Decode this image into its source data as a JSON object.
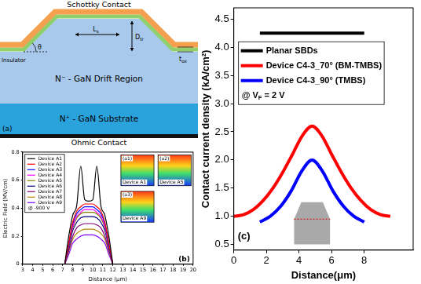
{
  "schematic": {
    "panel": "(a)",
    "schottky": "Schottky Contact",
    "ls": {
      "base": "L",
      "sub": "s"
    },
    "dtr": {
      "base": "D",
      "sub": "tr"
    },
    "theta": "θ",
    "insulator": "Insulator",
    "tox": {
      "base": "t",
      "sub": "ox"
    },
    "drift": "N⁻ - GaN Drift Region",
    "substrate": "N⁺ - GaN Substrate",
    "ohmic": "Ohmic Contact"
  },
  "chart_data": [
    {
      "panel": "(b)",
      "type": "line",
      "x_label": "Distance (μm)",
      "y_label": "Electric Field (MV/cm)",
      "xlim": [
        3,
        20
      ],
      "xticks": [
        3,
        4,
        5,
        6,
        7,
        8,
        9,
        10,
        11,
        12,
        13,
        14,
        15,
        16,
        17,
        18,
        19,
        20
      ],
      "ylim": [
        0,
        0.8
      ],
      "yticks": [
        0,
        0.2,
        0.4,
        0.6,
        0.8
      ],
      "legend": "upper left",
      "annotation": "@ -900 V",
      "insets": [
        {
          "tag": "(a1)",
          "label": "Device A1"
        },
        {
          "tag": "(a2)",
          "label": "Device A5"
        },
        {
          "tag": "(a3)",
          "label": "Device A9"
        }
      ],
      "series": [
        {
          "name": "Device A1",
          "color": "#000000",
          "x": [
            7.2,
            7.6,
            8.0,
            8.4,
            8.8,
            9.2,
            9.6,
            10.0,
            10.4,
            10.8,
            11.2,
            11.6,
            12.0
          ],
          "values": [
            0,
            0.2,
            0.35,
            0.42,
            0.7,
            0.46,
            0.45,
            0.46,
            0.7,
            0.42,
            0.35,
            0.2,
            0
          ]
        },
        {
          "name": "Device A2",
          "color": "#ff0000",
          "x": [
            7.2,
            7.6,
            8.0,
            8.4,
            8.8,
            9.2,
            9.6,
            10.0,
            10.4,
            10.8,
            11.2,
            11.6,
            12.0
          ],
          "values": [
            0,
            0.15,
            0.3,
            0.38,
            0.41,
            0.43,
            0.43,
            0.43,
            0.41,
            0.38,
            0.3,
            0.15,
            0
          ]
        },
        {
          "name": "Device A3",
          "color": "#0000ff",
          "x": [
            7.2,
            7.6,
            8.0,
            8.4,
            8.8,
            9.2,
            9.6,
            10.0,
            10.4,
            10.8,
            11.2,
            11.6,
            12.0
          ],
          "values": [
            0,
            0.14,
            0.29,
            0.36,
            0.39,
            0.41,
            0.41,
            0.41,
            0.39,
            0.36,
            0.29,
            0.14,
            0
          ]
        },
        {
          "name": "Device A4",
          "color": "#ff00ff",
          "x": [
            7.2,
            7.6,
            8.0,
            8.4,
            8.8,
            9.2,
            9.6,
            10.0,
            10.4,
            10.8,
            11.2,
            11.6,
            12.0
          ],
          "values": [
            0,
            0.14,
            0.27,
            0.34,
            0.37,
            0.39,
            0.39,
            0.39,
            0.37,
            0.34,
            0.27,
            0.14,
            0
          ]
        },
        {
          "name": "Device A5",
          "color": "#808000",
          "x": [
            7.2,
            7.6,
            8.0,
            8.4,
            8.8,
            9.2,
            9.6,
            10.0,
            10.4,
            10.8,
            11.2,
            11.6,
            12.0
          ],
          "values": [
            0,
            0.13,
            0.26,
            0.33,
            0.36,
            0.37,
            0.37,
            0.37,
            0.36,
            0.33,
            0.26,
            0.13,
            0
          ]
        },
        {
          "name": "Device A6",
          "color": "#000080",
          "x": [
            7.2,
            7.6,
            8.0,
            8.4,
            8.8,
            9.2,
            9.6,
            10.0,
            10.4,
            10.8,
            11.2,
            11.6,
            12.0
          ],
          "values": [
            0,
            0.12,
            0.24,
            0.3,
            0.33,
            0.34,
            0.34,
            0.34,
            0.33,
            0.3,
            0.24,
            0.12,
            0
          ]
        },
        {
          "name": "Device A7",
          "color": "#800080",
          "x": [
            7.2,
            7.6,
            8.0,
            8.4,
            8.8,
            9.2,
            9.6,
            10.0,
            10.4,
            10.8,
            11.2,
            11.6,
            12.0
          ],
          "values": [
            0,
            0.1,
            0.2,
            0.26,
            0.28,
            0.29,
            0.29,
            0.29,
            0.28,
            0.26,
            0.2,
            0.1,
            0
          ]
        },
        {
          "name": "Device A8",
          "color": "#b8860b",
          "x": [
            7.2,
            7.6,
            8.0,
            8.4,
            8.8,
            9.2,
            9.6,
            10.0,
            10.4,
            10.8,
            11.2,
            11.6,
            12.0
          ],
          "values": [
            0,
            0.09,
            0.18,
            0.22,
            0.24,
            0.25,
            0.25,
            0.25,
            0.24,
            0.22,
            0.18,
            0.09,
            0
          ]
        },
        {
          "name": "Device A9",
          "color": "#8000ff",
          "x": [
            7.2,
            7.6,
            8.0,
            8.4,
            8.8,
            9.2,
            9.6,
            10.0,
            10.4,
            10.8,
            11.2,
            11.6,
            12.0
          ],
          "values": [
            0,
            0.07,
            0.15,
            0.18,
            0.2,
            0.21,
            0.21,
            0.21,
            0.2,
            0.18,
            0.15,
            0.07,
            0
          ]
        }
      ]
    },
    {
      "panel": "(c)",
      "type": "line",
      "x_label": "Distance(μm)",
      "y_label": "Contact current density (kA/cm²)",
      "xlim": [
        0,
        11
      ],
      "xticks": [
        0,
        2,
        4,
        6,
        8
      ],
      "ylim": [
        0.4,
        4.7
      ],
      "yticks": [
        0.5,
        {
          "value": 1,
          "label": "1.0"
        },
        1.5,
        {
          "value": 2,
          "label": "2.0"
        },
        2.5,
        {
          "value": 3,
          "label": "3.0"
        },
        3.5,
        {
          "value": 4,
          "label": "4.0"
        },
        4.5
      ],
      "legend": "upper left",
      "annotation": {
        "parts": [
          "@ V",
          "F",
          " = 2 V"
        ],
        "sub": [
          false,
          true,
          false
        ]
      },
      "series": [
        {
          "name": "Planar SBDs",
          "color": "#000000",
          "x": [
            1.6,
            8.0
          ],
          "values": [
            4.25,
            4.25
          ]
        },
        {
          "name": "Device C4-3_70° (BM-TMBS)",
          "color": "#ff0000",
          "x": [
            0,
            0.6,
            1.2,
            1.8,
            2.4,
            3.0,
            3.6,
            4.2,
            4.8,
            5.4,
            6.0,
            6.6,
            7.2,
            7.8,
            8.4,
            9.0,
            9.6
          ],
          "values": [
            1.0,
            1.03,
            1.12,
            1.28,
            1.5,
            1.78,
            2.1,
            2.43,
            2.6,
            2.43,
            2.1,
            1.78,
            1.5,
            1.28,
            1.12,
            1.03,
            1.0
          ]
        },
        {
          "name": "Device C4-3_90° (TMBS)",
          "color": "#0000ff",
          "x": [
            1.6,
            2.24,
            2.88,
            3.52,
            4.16,
            4.8,
            5.44,
            6.08,
            6.72,
            7.36,
            8.0
          ],
          "values": [
            0.9,
            1.0,
            1.18,
            1.45,
            1.8,
            2.0,
            1.8,
            1.45,
            1.18,
            1.0,
            0.9
          ]
        }
      ]
    }
  ]
}
